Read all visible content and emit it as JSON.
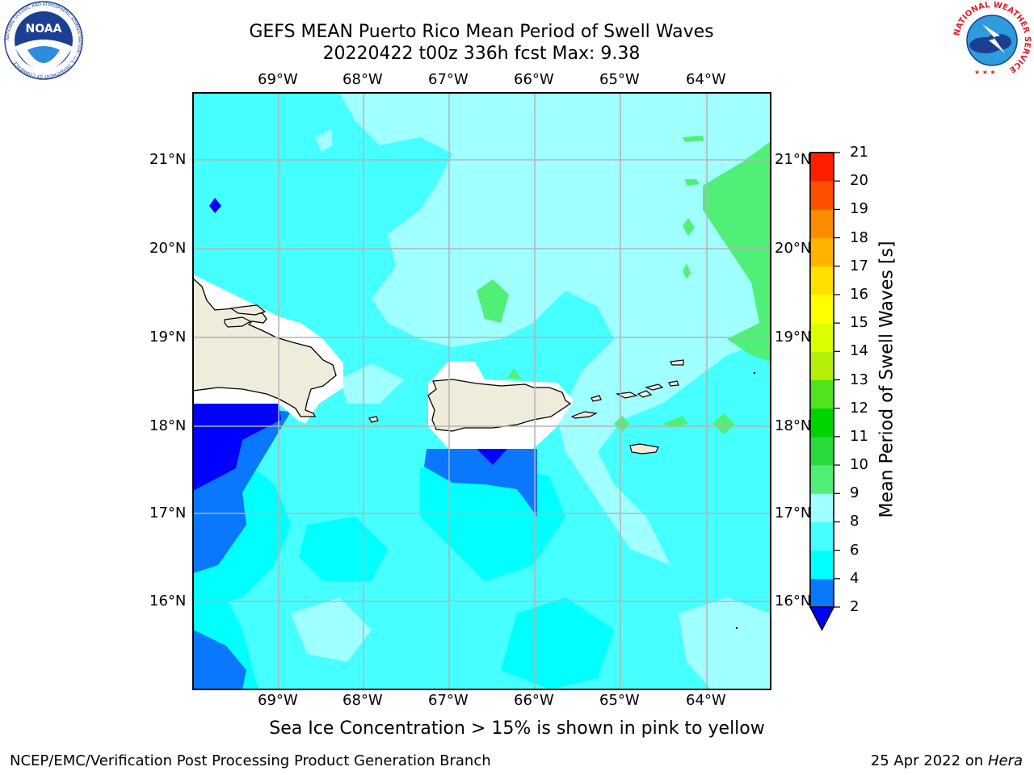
{
  "title_line1": "GEFS MEAN Puerto Rico Mean Period of Swell Waves",
  "title_line2": "20220422 t00z 336h fcst   Max: 9.38",
  "logos": {
    "noaa": {
      "text": "NOAA",
      "ring_text": "NATIONAL OCEANIC AND ATMOSPHERIC ADMINISTRATION · U.S. DEPARTMENT OF COMMERCE"
    },
    "nws": {
      "ring_text": "NATIONAL WEATHER SERVICE"
    }
  },
  "map": {
    "lon_labels": [
      "69°W",
      "68°W",
      "67°W",
      "66°W",
      "65°W",
      "64°W"
    ],
    "lat_labels": [
      "21°N",
      "20°N",
      "19°N",
      "18°N",
      "17°N",
      "16°N"
    ],
    "lon_range": [
      -70.0,
      -63.3
    ],
    "lat_range": [
      15.0,
      21.75
    ],
    "land_color": "#efecdc",
    "mask_color": "#ffffff",
    "grid_color": "#b4b4b4"
  },
  "colorbar": {
    "title": "Mean Period of Swell Waves [s]",
    "ticks": [
      "2",
      "4",
      "6",
      "8",
      "9",
      "10",
      "11",
      "12",
      "13",
      "14",
      "15",
      "16",
      "17",
      "18",
      "19",
      "20",
      "21"
    ],
    "colors": [
      "#0a77ff",
      "#00ffff",
      "#46ffff",
      "#a0ffff",
      "#50f078",
      "#28dc3c",
      "#00d400",
      "#50e41e",
      "#b4f00a",
      "#dcff00",
      "#ffff00",
      "#ffe100",
      "#ffb400",
      "#ff8c00",
      "#ff5000",
      "#ff1e00",
      "#ff0000"
    ],
    "under_color": "#0000ff"
  },
  "footnote": "Sea Ice Concentration > 15% is shown in pink to yellow",
  "credit": "NCEP/EMC/Verification Post Processing Product Generation Branch",
  "date": "25 Apr 2022 on ",
  "machine": "Hera"
}
